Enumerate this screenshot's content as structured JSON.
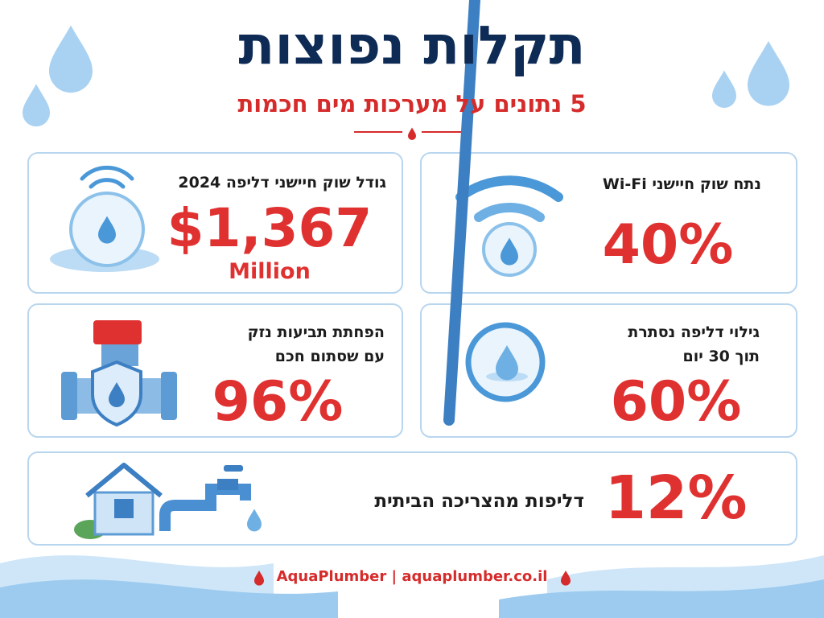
{
  "header": {
    "title": "תקלות נפוצות",
    "subtitle": "5 נתונים על מערכות מים חכמות"
  },
  "cards": [
    {
      "label": [
        "גודל שוק חיישני דליפה 2024"
      ],
      "value": "$1,367",
      "unit": "Million"
    },
    {
      "label": [
        "נתח שוק חיישני Wi-Fi"
      ],
      "value": "40%"
    },
    {
      "label": [
        "הפחתת תביעות נזק",
        "עם שסתום חכם"
      ],
      "value": "96%"
    },
    {
      "label": [
        "גילוי דליפה נסתרת",
        "תוך 30 יום"
      ],
      "value": "60%"
    },
    {
      "label": [
        "דליפות מהצריכה הביתית"
      ],
      "value": "12%"
    }
  ],
  "footer": {
    "text": "AquaPlumber | aquaplumber.co.il"
  }
}
